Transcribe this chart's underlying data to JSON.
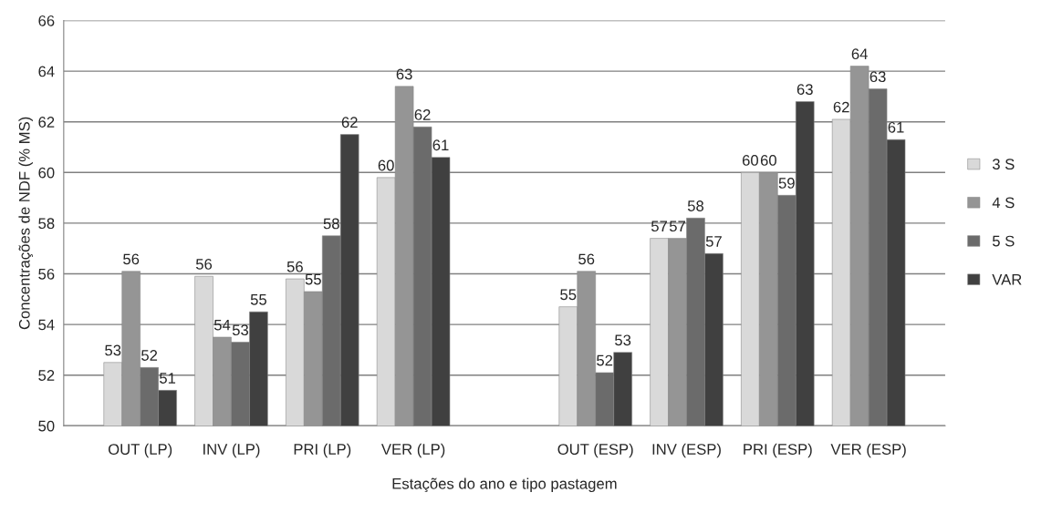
{
  "chart_data": {
    "type": "bar",
    "xlabel": "Estações do ano e tipo pastagem",
    "ylabel": "Concentrações de NDF (% MS)",
    "categories": [
      "OUT (LP)",
      "INV (LP)",
      "PRI (LP)",
      "VER (LP)",
      null,
      "OUT (ESP)",
      "INV (ESP)",
      "PRI (ESP)",
      "VER (ESP)"
    ],
    "series": [
      {
        "name": "3 S",
        "color": "#d9d9d9",
        "values": [
          52.5,
          55.9,
          55.8,
          59.8,
          null,
          54.7,
          57.4,
          60.0,
          62.1
        ],
        "value_labels": [
          "53",
          "56",
          "56",
          "60",
          null,
          "55",
          "57",
          "60",
          "62"
        ]
      },
      {
        "name": "4 S",
        "color": "#959595",
        "values": [
          56.1,
          53.5,
          55.3,
          63.4,
          null,
          56.1,
          57.4,
          60.0,
          64.2
        ],
        "value_labels": [
          "56",
          "54",
          "55",
          "63",
          null,
          "56",
          "57",
          "60",
          "64"
        ]
      },
      {
        "name": "5 S",
        "color": "#6b6b6b",
        "values": [
          52.3,
          53.3,
          57.5,
          61.8,
          null,
          52.1,
          58.2,
          59.1,
          63.3
        ],
        "value_labels": [
          "52",
          "53",
          "58",
          "62",
          null,
          "52",
          "58",
          "59",
          "63"
        ]
      },
      {
        "name": "VAR",
        "color": "#404040",
        "values": [
          51.4,
          54.5,
          61.5,
          60.6,
          null,
          52.9,
          56.8,
          62.8,
          61.3
        ],
        "value_labels": [
          "51",
          "55",
          "62",
          "61",
          null,
          "53",
          "57",
          "63",
          "61"
        ]
      }
    ],
    "ylim": [
      50,
      66
    ],
    "yticks": [
      50,
      52,
      54,
      56,
      58,
      60,
      62,
      64,
      66
    ],
    "grid": "y",
    "legend": "right"
  }
}
